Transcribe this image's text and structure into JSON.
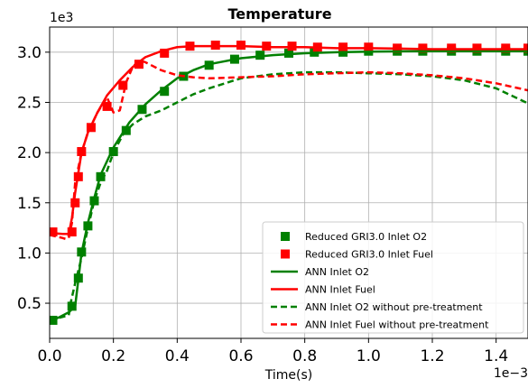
{
  "chart_data": {
    "type": "line",
    "title": "Temperature",
    "xlabel": "Time(s)",
    "ylabel": "",
    "x_exponent_label": "1e−3",
    "y_exponent_label": "1e3",
    "xlim": [
      0,
      0.0015
    ],
    "ylim": [
      150,
      3250
    ],
    "x_ticks": [
      0,
      0.0002,
      0.0004,
      0.0006,
      0.0008,
      0.001,
      0.0012,
      0.0014
    ],
    "x_tick_labels": [
      "0.0",
      "0.2",
      "0.4",
      "0.6",
      "0.8",
      "1.0",
      "1.2",
      "1.4"
    ],
    "y_ticks": [
      500,
      1000,
      1500,
      2000,
      2500,
      3000
    ],
    "y_tick_labels": [
      "0.5",
      "1.0",
      "1.5",
      "2.0",
      "2.5",
      "3.0"
    ],
    "grid": true,
    "legend_position": "lower-right",
    "series": [
      {
        "name": "Reduced GRI3.0 Inlet O2",
        "style": "markers",
        "marker": "square",
        "color": "#008000",
        "x": [
          1e-05,
          7e-05,
          9e-05,
          0.0001,
          0.00012,
          0.00014,
          0.00016,
          0.0002,
          0.00024,
          0.00029,
          0.00036,
          0.00042,
          0.0005,
          0.00058,
          0.00066,
          0.00075,
          0.00083,
          0.00092,
          0.001,
          0.00109,
          0.00117,
          0.00126,
          0.00134,
          0.00143,
          0.0015
        ],
        "y": [
          330,
          470,
          750,
          1010,
          1270,
          1520,
          1760,
          2010,
          2220,
          2430,
          2610,
          2760,
          2870,
          2930,
          2970,
          2990,
          3000,
          3000,
          3010,
          3010,
          3010,
          3010,
          3010,
          3010,
          3010
        ]
      },
      {
        "name": "Reduced GRI3.0 Inlet Fuel",
        "style": "markers",
        "marker": "square",
        "color": "#ff0000",
        "x": [
          1e-05,
          7e-05,
          8e-05,
          9e-05,
          0.0001,
          0.00013,
          0.00018,
          0.00023,
          0.00028,
          0.00036,
          0.00044,
          0.00052,
          0.0006,
          0.00068,
          0.00076,
          0.00084,
          0.00092,
          0.001,
          0.00109,
          0.00117,
          0.00126,
          0.00134,
          0.00143,
          0.0015
        ],
        "y": [
          1210,
          1210,
          1500,
          1760,
          2010,
          2250,
          2460,
          2670,
          2880,
          2990,
          3060,
          3070,
          3070,
          3060,
          3060,
          3050,
          3050,
          3050,
          3040,
          3040,
          3040,
          3040,
          3040,
          3040
        ]
      },
      {
        "name": "ANN Inlet O2",
        "style": "solid",
        "color": "#008000",
        "x": [
          0,
          3e-05,
          6e-05,
          8e-05,
          0.0001,
          0.00012,
          0.00014,
          0.00016,
          0.0002,
          0.00025,
          0.0003,
          0.00035,
          0.0004,
          0.00045,
          0.0005,
          0.0006,
          0.0007,
          0.0008,
          0.0009,
          0.001,
          0.0011,
          0.0012,
          0.0013,
          0.0014,
          0.0015
        ],
        "y": [
          320,
          360,
          410,
          470,
          1000,
          1300,
          1550,
          1780,
          2050,
          2300,
          2480,
          2620,
          2740,
          2820,
          2880,
          2940,
          2970,
          2990,
          3000,
          3005,
          3008,
          3010,
          3010,
          3010,
          3010
        ]
      },
      {
        "name": "ANN Inlet Fuel",
        "style": "solid",
        "color": "#ff0000",
        "x": [
          0,
          4e-05,
          6e-05,
          7e-05,
          8e-05,
          9e-05,
          0.0001,
          0.00012,
          0.00015,
          0.00018,
          0.00022,
          0.00026,
          0.0003,
          0.00035,
          0.0004,
          0.00045,
          0.0005,
          0.0006,
          0.0007,
          0.0008,
          0.0009,
          0.001,
          0.0011,
          0.0012,
          0.0013,
          0.0014,
          0.0015
        ],
        "y": [
          1200,
          1190,
          1190,
          1350,
          1600,
          1800,
          2000,
          2200,
          2400,
          2570,
          2720,
          2850,
          2950,
          3010,
          3050,
          3060,
          3060,
          3060,
          3050,
          3050,
          3040,
          3040,
          3035,
          3030,
          3030,
          3030,
          3030
        ]
      },
      {
        "name": "ANN Inlet O2 without pre-treatment",
        "style": "dashed",
        "color": "#008000",
        "x": [
          0,
          6e-05,
          6.5e-05,
          8e-05,
          0.0001,
          0.00012,
          0.00014,
          0.00016,
          0.00018,
          0.0002,
          0.00023,
          0.00026,
          0.0003,
          0.00035,
          0.0004,
          0.00045,
          0.0005,
          0.0006,
          0.0007,
          0.0008,
          0.0009,
          0.001,
          0.0011,
          0.0012,
          0.0013,
          0.0014,
          0.0015
        ],
        "y": [
          330,
          380,
          490,
          700,
          950,
          1250,
          1520,
          1700,
          1820,
          2000,
          2180,
          2280,
          2360,
          2420,
          2500,
          2580,
          2640,
          2740,
          2780,
          2800,
          2800,
          2790,
          2780,
          2760,
          2720,
          2640,
          2490
        ]
      },
      {
        "name": "ANN Inlet Fuel without pre-treatment",
        "style": "dashed",
        "color": "#ff0000",
        "x": [
          0,
          4e-05,
          5e-05,
          6e-05,
          7e-05,
          8e-05,
          0.0001,
          0.00012,
          0.00015,
          0.00018,
          0.0002,
          0.00022,
          0.00024,
          0.00026,
          0.00028,
          0.0003,
          0.00035,
          0.0004,
          0.00045,
          0.0005,
          0.0006,
          0.0007,
          0.0008,
          0.0009,
          0.001,
          0.0011,
          0.0012,
          0.0013,
          0.0014,
          0.0015
        ],
        "y": [
          1180,
          1150,
          1140,
          1150,
          1300,
          1700,
          2000,
          2200,
          2400,
          2550,
          2400,
          2420,
          2700,
          2850,
          2920,
          2900,
          2820,
          2770,
          2750,
          2740,
          2750,
          2760,
          2780,
          2790,
          2800,
          2790,
          2770,
          2740,
          2690,
          2620
        ]
      }
    ]
  }
}
